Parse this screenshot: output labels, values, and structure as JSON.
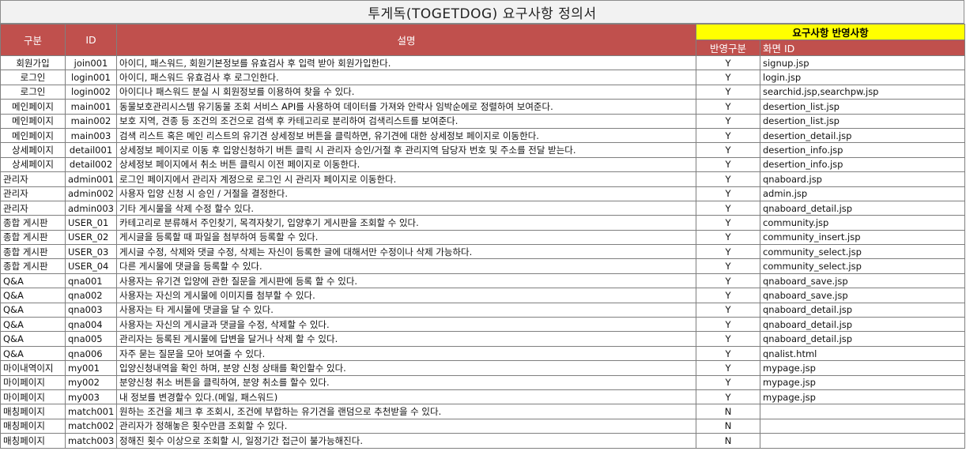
{
  "title": "투게독(TOGETDOG) 요구사항 정의서",
  "headers": {
    "category": "구분",
    "id": "ID",
    "description": "설명",
    "reflection_group": "요구사항 반영사항",
    "reflection_type": "반영구분",
    "screen_id": "화면 ID"
  },
  "rows": [
    {
      "category": "회원가입",
      "id": "join001",
      "description": "아이디, 패스워드, 회원기본정보를 유효검사 후 입력 받아 회원가입한다.",
      "reflected": "Y",
      "screen": "signup.jsp",
      "align": "center"
    },
    {
      "category": "로그인",
      "id": "login001",
      "description": "아이디, 패스워드 유효검사 후 로그인한다.",
      "reflected": "Y",
      "screen": "login.jsp",
      "align": "center"
    },
    {
      "category": "로그인",
      "id": "login002",
      "description": "아이디나 패스워드 분실 시 회원정보를 이용하여 찾을 수 있다.",
      "reflected": "Y",
      "screen": "searchid.jsp,searchpw.jsp",
      "align": "center"
    },
    {
      "category": "메인페이지",
      "id": "main001",
      "description": "동물보호관리시스템 유기동물 조회 서비스 API를 사용하여 데이터를 가져와 안락사 임박순에로 정렬하여 보여준다.",
      "reflected": "Y",
      "screen": "desertion_list.jsp",
      "align": "center"
    },
    {
      "category": "메인페이지",
      "id": "main002",
      "description": "보호 지역, 견종 등 조건의 조건으로 검색 후 카테고리로 분리하여 검색리스트를 보여준다.",
      "reflected": "Y",
      "screen": "desertion_list.jsp",
      "align": "center"
    },
    {
      "category": "메인페이지",
      "id": "main003",
      "description": "검색 리스트 혹은 메인 리스트의 유기견 상세정보 버튼을 클릭하면, 유기견에 대한 상세정보 페이지로 이동한다.",
      "reflected": "Y",
      "screen": "desertion_detail.jsp",
      "align": "center"
    },
    {
      "category": "상세페이지",
      "id": "detail001",
      "description": "상세정보 페이지로 이동 후 입양신청하기 버튼 클릭 시 관리자 승인/거절 후 관리지역 담당자 번호 및 주소를 전달 받는다.",
      "reflected": "Y",
      "screen": "desertion_info.jsp",
      "align": "center"
    },
    {
      "category": "상세페이지",
      "id": "detail002",
      "description": "상세정보 페이지에서 취소 버튼 클릭시 이전 페이지로 이동한다.",
      "reflected": "Y",
      "screen": "desertion_info.jsp",
      "align": "center"
    },
    {
      "category": "관리자",
      "id": "admin001",
      "description": "로그인 페이지에서 관리자 계정으로 로그인 시 관리자 페이지로 이동한다.",
      "reflected": "Y",
      "screen": "qnaboard.jsp",
      "align": "left"
    },
    {
      "category": "관리자",
      "id": "admin002",
      "description": "사용자 입양 신청 시 승인 / 거절을 결정한다.",
      "reflected": "Y",
      "screen": "admin.jsp",
      "align": "left"
    },
    {
      "category": "관리자",
      "id": "admin003",
      "description": "기타 게시물을 삭제 수정 할수 있다.",
      "reflected": "Y",
      "screen": "qnaboard_detail.jsp",
      "align": "left"
    },
    {
      "category": "종합 게시판",
      "id": "USER_01",
      "description": "카테고리로 분류해서 주인찾기, 목격자찾기, 입양후기 게시판을 조회할 수 있다.",
      "reflected": "Y",
      "screen": "community.jsp",
      "align": "left"
    },
    {
      "category": "종합 게시판",
      "id": "USER_02",
      "description": "게시글을 등록할 때 파일을 첨부하여 등록할 수 있다.",
      "reflected": "Y",
      "screen": "community_insert.jsp",
      "align": "left"
    },
    {
      "category": "종합 게시판",
      "id": "USER_03",
      "description": "게시글 수정, 삭제와 댓글 수정, 삭제는 자신이 등록한 글에 대해서만 수정이나 삭제 가능하다.",
      "reflected": "Y",
      "screen": "community_select.jsp",
      "align": "left"
    },
    {
      "category": "종합 게시판",
      "id": "USER_04",
      "description": "다른 게시물에 댓글을 등록할 수 있다.",
      "reflected": "Y",
      "screen": "community_select.jsp",
      "align": "left"
    },
    {
      "category": "Q&A",
      "id": "qna001",
      "description": "사용자는 유기견 입양에 관한 질문을 게시판에 등록 할 수 있다.",
      "reflected": "Y",
      "screen": "qnaboard_save.jsp",
      "align": "left"
    },
    {
      "category": "Q&A",
      "id": "qna002",
      "description": "사용자는 자신의 게시물에 이미지를 첨부할 수 있다.",
      "reflected": "Y",
      "screen": "qnaboard_save.jsp",
      "align": "left"
    },
    {
      "category": "Q&A",
      "id": "qna003",
      "description": "사용자는 타 게시물에 댓글을 달 수 있다.",
      "reflected": "Y",
      "screen": "qnaboard_detail.jsp",
      "align": "left"
    },
    {
      "category": "Q&A",
      "id": "qna004",
      "description": "사용자는 자신의 게시글과 댓글을 수정, 삭제할 수 있다.",
      "reflected": "Y",
      "screen": "qnaboard_detail.jsp",
      "align": "left"
    },
    {
      "category": "Q&A",
      "id": "qna005",
      "description": "관리자는 등록된 게시물에 답변을 달거나 삭제 할 수 있다.",
      "reflected": "Y",
      "screen": "qnaboard_detail.jsp",
      "align": "left"
    },
    {
      "category": "Q&A",
      "id": "qna006",
      "description": "자주 묻는 질문을 모아 보여줄 수 있다.",
      "reflected": "Y",
      "screen": "qnalist.html",
      "align": "left"
    },
    {
      "category": "마이내역이지",
      "id": "my001",
      "description": "입양신청내역을 확인 하며, 분양 신청 상태를 확인할수 있다.",
      "reflected": "Y",
      "screen": "mypage.jsp",
      "align": "left"
    },
    {
      "category": "마이페이지",
      "id": "my002",
      "description": "분양신청 취소 버튼을 클릭하여, 분양 취소를 할수 있다.",
      "reflected": "Y",
      "screen": "mypage.jsp",
      "align": "left"
    },
    {
      "category": "마이페이지",
      "id": "my003",
      "description": "내 정보를 변경할수 있다.(메일, 패스워드)",
      "reflected": "Y",
      "screen": "mypage.jsp",
      "align": "left"
    },
    {
      "category": "매칭페이지",
      "id": "match001",
      "description": "원하는 조건을 체크 후 조회시, 조건에 부합하는 유기견을 랜덤으로 추천받을 수 있다.",
      "reflected": "N",
      "screen": "",
      "align": "left"
    },
    {
      "category": "매칭페이지",
      "id": "match002",
      "description": "관리자가 정해놓은 횟수만큼 조회할 수 있다.",
      "reflected": "N",
      "screen": "",
      "align": "left"
    },
    {
      "category": "매칭페이지",
      "id": "match003",
      "description": "정해진 횟수 이상으로 조회할 시, 일정기간 접근이 불가능해진다.",
      "reflected": "N",
      "screen": "",
      "align": "left"
    }
  ]
}
